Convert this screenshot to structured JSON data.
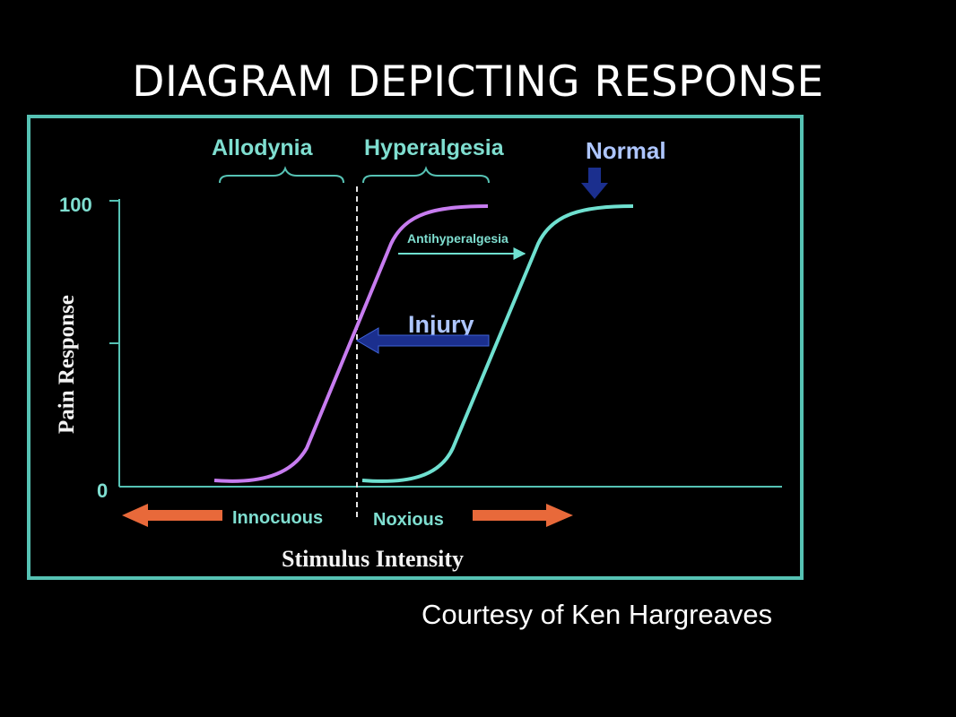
{
  "slide": {
    "title": "DIAGRAM DEPICTING RESPONSE",
    "credit": "Courtesy of Ken Hargreaves"
  },
  "diagram": {
    "labels": {
      "allodynia": "Allodynia",
      "hyperalgesia": "Hyperalgesia",
      "normal": "Normal",
      "antihyperalgesia": "Antihyperalgesia",
      "injury": "Injury",
      "innocuous": "Innocuous",
      "noxious": "Noxious"
    },
    "axes": {
      "y_label": "Pain Response",
      "x_label": "Stimulus Intensity",
      "y_tick_top": "100",
      "y_tick_bottom": "0"
    },
    "colors": {
      "frame": "#56c2b4",
      "injured_curve": "#c77cf0",
      "normal_curve": "#6fe0d0",
      "arrow_orange": "#e8693a",
      "arrow_blue": "#1b2f8e",
      "dashed_line": "#e6e6e6"
    }
  }
}
